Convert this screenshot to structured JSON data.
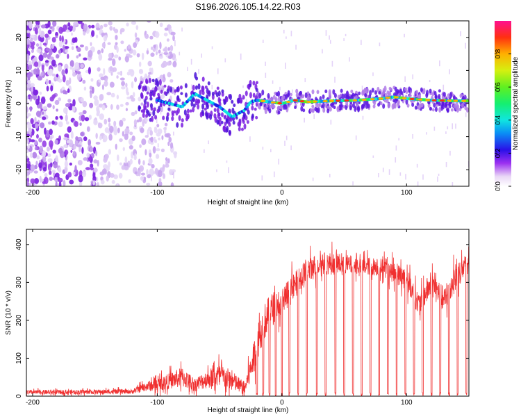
{
  "title": "S196.2026.105.14.22.R03",
  "chart_data": [
    {
      "type": "heatmap",
      "name": "spectrogram",
      "xlabel": "Height of straight line (km)",
      "ylabel": "Frequency (Hz)",
      "xlim": [
        -205,
        150
      ],
      "ylim": [
        -25,
        25
      ],
      "xticks": [
        -200,
        -100,
        0,
        100
      ],
      "yticks": [
        -20,
        -10,
        0,
        10,
        20
      ],
      "colorbar": {
        "label": "Normalized spectral amplitude",
        "range": [
          0.0,
          1.0
        ],
        "ticks": [
          0.0,
          0.2,
          0.4,
          0.6,
          0.8
        ],
        "tick_labels": [
          "0.0",
          "0.2",
          "0.4",
          "0.6",
          "0.8"
        ]
      },
      "ridge": {
        "x": [
          -100,
          -90,
          -80,
          -70,
          -60,
          -50,
          -40,
          -35,
          -30,
          -25,
          -20,
          -10,
          0,
          10,
          20,
          40,
          60,
          80,
          90,
          100,
          120,
          140,
          150
        ],
        "frequency": [
          1,
          0,
          -1,
          3,
          1,
          -1,
          -4,
          -3,
          -2,
          0.5,
          1,
          0.5,
          0,
          1,
          0.5,
          0.8,
          1,
          1.5,
          2,
          1.5,
          1,
          0.8,
          0.8
        ]
      }
    },
    {
      "type": "line",
      "name": "snr",
      "xlabel": "Height of straight line (km)",
      "ylabel": "SNR (10 * v/v)",
      "xlim": [
        -205,
        150
      ],
      "ylim": [
        0,
        440
      ],
      "xticks": [
        -200,
        -100,
        0,
        100
      ],
      "yticks": [
        0,
        100,
        200,
        300,
        400
      ],
      "color": "#f03030",
      "envelope": {
        "x": [
          -205,
          -120,
          -110,
          -100,
          -90,
          -80,
          -70,
          -60,
          -50,
          -40,
          -30,
          -25,
          -20,
          -15,
          -10,
          -5,
          0,
          10,
          20,
          30,
          40,
          60,
          80,
          100,
          110,
          120,
          130,
          140,
          150
        ],
        "mean": [
          10,
          12,
          25,
          30,
          40,
          50,
          30,
          45,
          55,
          40,
          20,
          70,
          140,
          190,
          220,
          240,
          250,
          290,
          330,
          350,
          350,
          345,
          340,
          310,
          240,
          300,
          250,
          320,
          350
        ],
        "spread": [
          10,
          10,
          20,
          30,
          35,
          45,
          30,
          40,
          55,
          45,
          30,
          60,
          80,
          80,
          80,
          70,
          70,
          60,
          60,
          50,
          50,
          40,
          40,
          50,
          50,
          60,
          60,
          60,
          50
        ]
      },
      "dropouts_x": [
        -20,
        -15,
        -10,
        -5,
        0,
        6,
        13,
        20,
        28,
        35,
        43,
        50,
        57,
        64,
        71,
        78,
        85,
        92,
        99,
        106,
        113,
        120,
        127,
        134,
        141,
        148
      ]
    }
  ]
}
